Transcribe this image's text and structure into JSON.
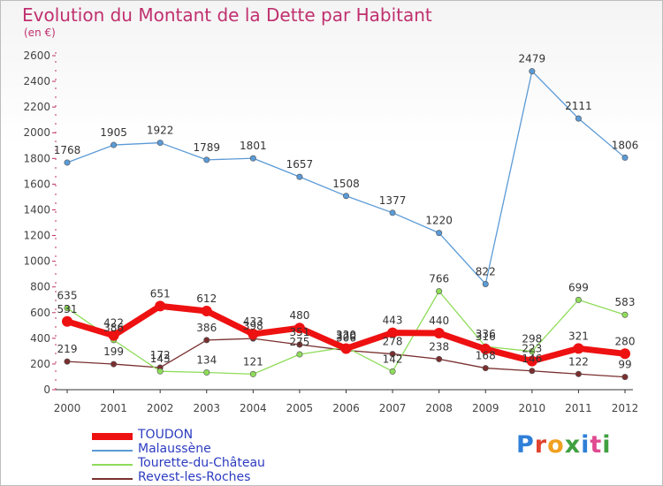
{
  "title": "Evolution du Montant de la Dette par Habitant",
  "subtitle": "(en €)",
  "logo": {
    "text": "Proxiti",
    "colors": [
      "#2f7fd8",
      "#e0432f",
      "#f0a020",
      "#40a040",
      "#2f7fd8",
      "#e04a90",
      "#40a040"
    ]
  },
  "chart_data": {
    "type": "line",
    "x": [
      "2000",
      "2001",
      "2002",
      "2003",
      "2004",
      "2005",
      "2006",
      "2007",
      "2008",
      "2009",
      "2010",
      "2011",
      "2012"
    ],
    "ylim": [
      0,
      2600
    ],
    "yticks": [
      0,
      200,
      400,
      600,
      800,
      1000,
      1200,
      1400,
      1600,
      1800,
      2000,
      2200,
      2400,
      2600
    ],
    "grid": false,
    "legend": "bottom-left",
    "series": [
      {
        "name": "TOUDON",
        "color": "#ee1111",
        "values": [
          531,
          422,
          651,
          612,
          433,
          480,
          320,
          443,
          440,
          316,
          223,
          321,
          280
        ]
      },
      {
        "name": "Malaussène",
        "color": "#5b9ad6",
        "values": [
          1768,
          1905,
          1922,
          1789,
          1801,
          1657,
          1508,
          1377,
          1220,
          822,
          2479,
          2111,
          1806
        ]
      },
      {
        "name": "Tourette-du-Château",
        "color": "#8fdc5a",
        "values": [
          635,
          386,
          143,
          134,
          121,
          275,
          330,
          142,
          766,
          336,
          298,
          699,
          583
        ]
      },
      {
        "name": "Revest-les-Roches",
        "color": "#7a2f2f",
        "values": [
          219,
          199,
          172,
          386,
          398,
          351,
          306,
          278,
          238,
          168,
          146,
          122,
          99
        ]
      }
    ]
  }
}
